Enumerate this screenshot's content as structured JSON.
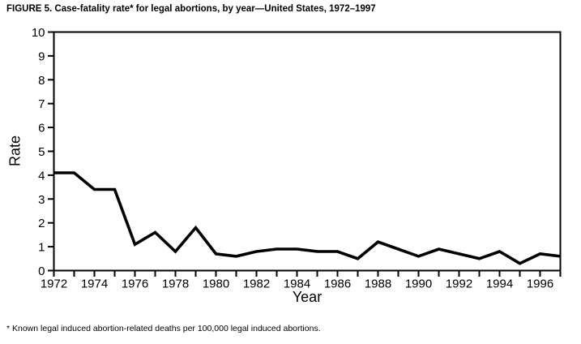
{
  "chart_data": {
    "type": "line",
    "title": "FIGURE 5. Case-fatality rate* for legal abortions, by year—United States, 1972–1997",
    "footnote": "* Known legal induced abortion-related deaths per 100,000 legal induced abortions.",
    "xlabel": "Year",
    "ylabel": "Rate",
    "x": [
      1972,
      1973,
      1974,
      1975,
      1976,
      1977,
      1978,
      1979,
      1980,
      1981,
      1982,
      1983,
      1984,
      1985,
      1986,
      1987,
      1988,
      1989,
      1990,
      1991,
      1992,
      1993,
      1994,
      1995,
      1996,
      1997
    ],
    "series": [
      {
        "name": "Case-fatality rate per 100,000 legal induced abortions",
        "values": [
          4.1,
          4.1,
          3.4,
          3.4,
          1.1,
          1.6,
          0.8,
          1.8,
          0.7,
          0.6,
          0.8,
          0.9,
          0.9,
          0.8,
          0.8,
          0.5,
          1.2,
          0.9,
          0.6,
          0.9,
          0.7,
          0.5,
          0.8,
          0.3,
          0.7,
          0.6
        ]
      }
    ],
    "ylim": [
      0,
      10
    ],
    "xlim": [
      1972,
      1997
    ],
    "ytick_interval": 1,
    "xtick_interval": 1,
    "xlabel_interval": 2,
    "grid": false,
    "legend": "none",
    "line_color": "#000000",
    "axis_color": "#000000",
    "background": "#ffffff"
  }
}
